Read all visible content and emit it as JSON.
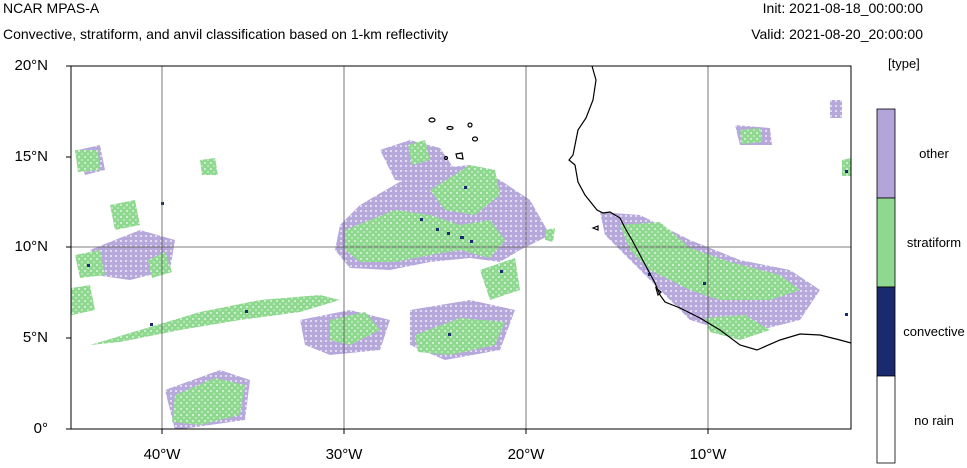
{
  "header": {
    "model": "NCAR MPAS-A",
    "description": "Convective, stratiform, and anvil classification based on 1-km reflectivity",
    "init": "Init: 2021-08-18_00:00:00",
    "valid": "Valid: 2021-08-20_20:00:00"
  },
  "axes": {
    "latitudes": [
      "20°N",
      "15°N",
      "10°N",
      "5°N",
      "0°"
    ],
    "longitudes": [
      "40°W",
      "30°W",
      "20°W",
      "10°W"
    ]
  },
  "legend": {
    "unit": "[type]",
    "entries": [
      {
        "label": "other",
        "color": "#b3a4da"
      },
      {
        "label": "stratiform",
        "color": "#8fd88f"
      },
      {
        "label": "convective",
        "color": "#1a2a6e"
      },
      {
        "label": "no rain",
        "color": "#ffffff"
      }
    ]
  },
  "colors": {
    "other": "#b3a4da",
    "stratiform": "#8fd88f",
    "convective": "#1a2a6e",
    "coastline": "#000000",
    "grid": "#555555"
  }
}
